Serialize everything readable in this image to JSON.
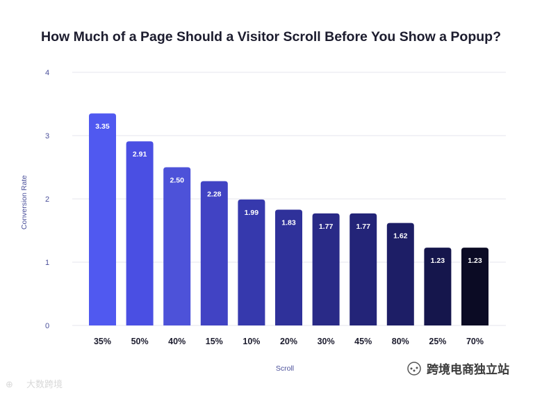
{
  "chart_data": {
    "type": "bar",
    "title": "How Much of a Page Should a Visitor Scroll Before You Show a Popup?",
    "xlabel": "Scroll",
    "ylabel": "Conversion Rate",
    "ylim": [
      0,
      4
    ],
    "yticks": [
      "0",
      "1",
      "2",
      "3",
      "4"
    ],
    "grid": true,
    "categories": [
      "35%",
      "50%",
      "40%",
      "15%",
      "10%",
      "20%",
      "30%",
      "45%",
      "80%",
      "25%",
      "70%"
    ],
    "values": [
      3.35,
      2.91,
      2.5,
      2.28,
      1.99,
      1.83,
      1.77,
      1.77,
      1.62,
      1.23,
      1.23
    ],
    "data_labels": [
      "3.35",
      "2.91",
      "2.50",
      "2.28",
      "1.99",
      "1.83",
      "1.77",
      "1.77",
      "1.62",
      "1.23",
      "1.23"
    ],
    "bar_colors": [
      "#5059f0",
      "#4a4fe3",
      "#4d52d9",
      "#4143c4",
      "#3639ad",
      "#2f319a",
      "#292a87",
      "#232478",
      "#1d1e66",
      "#15164c",
      "#0b0b24"
    ]
  },
  "watermarks": {
    "left_text": "大数跨境",
    "right_text": "跨境电商独立站"
  }
}
